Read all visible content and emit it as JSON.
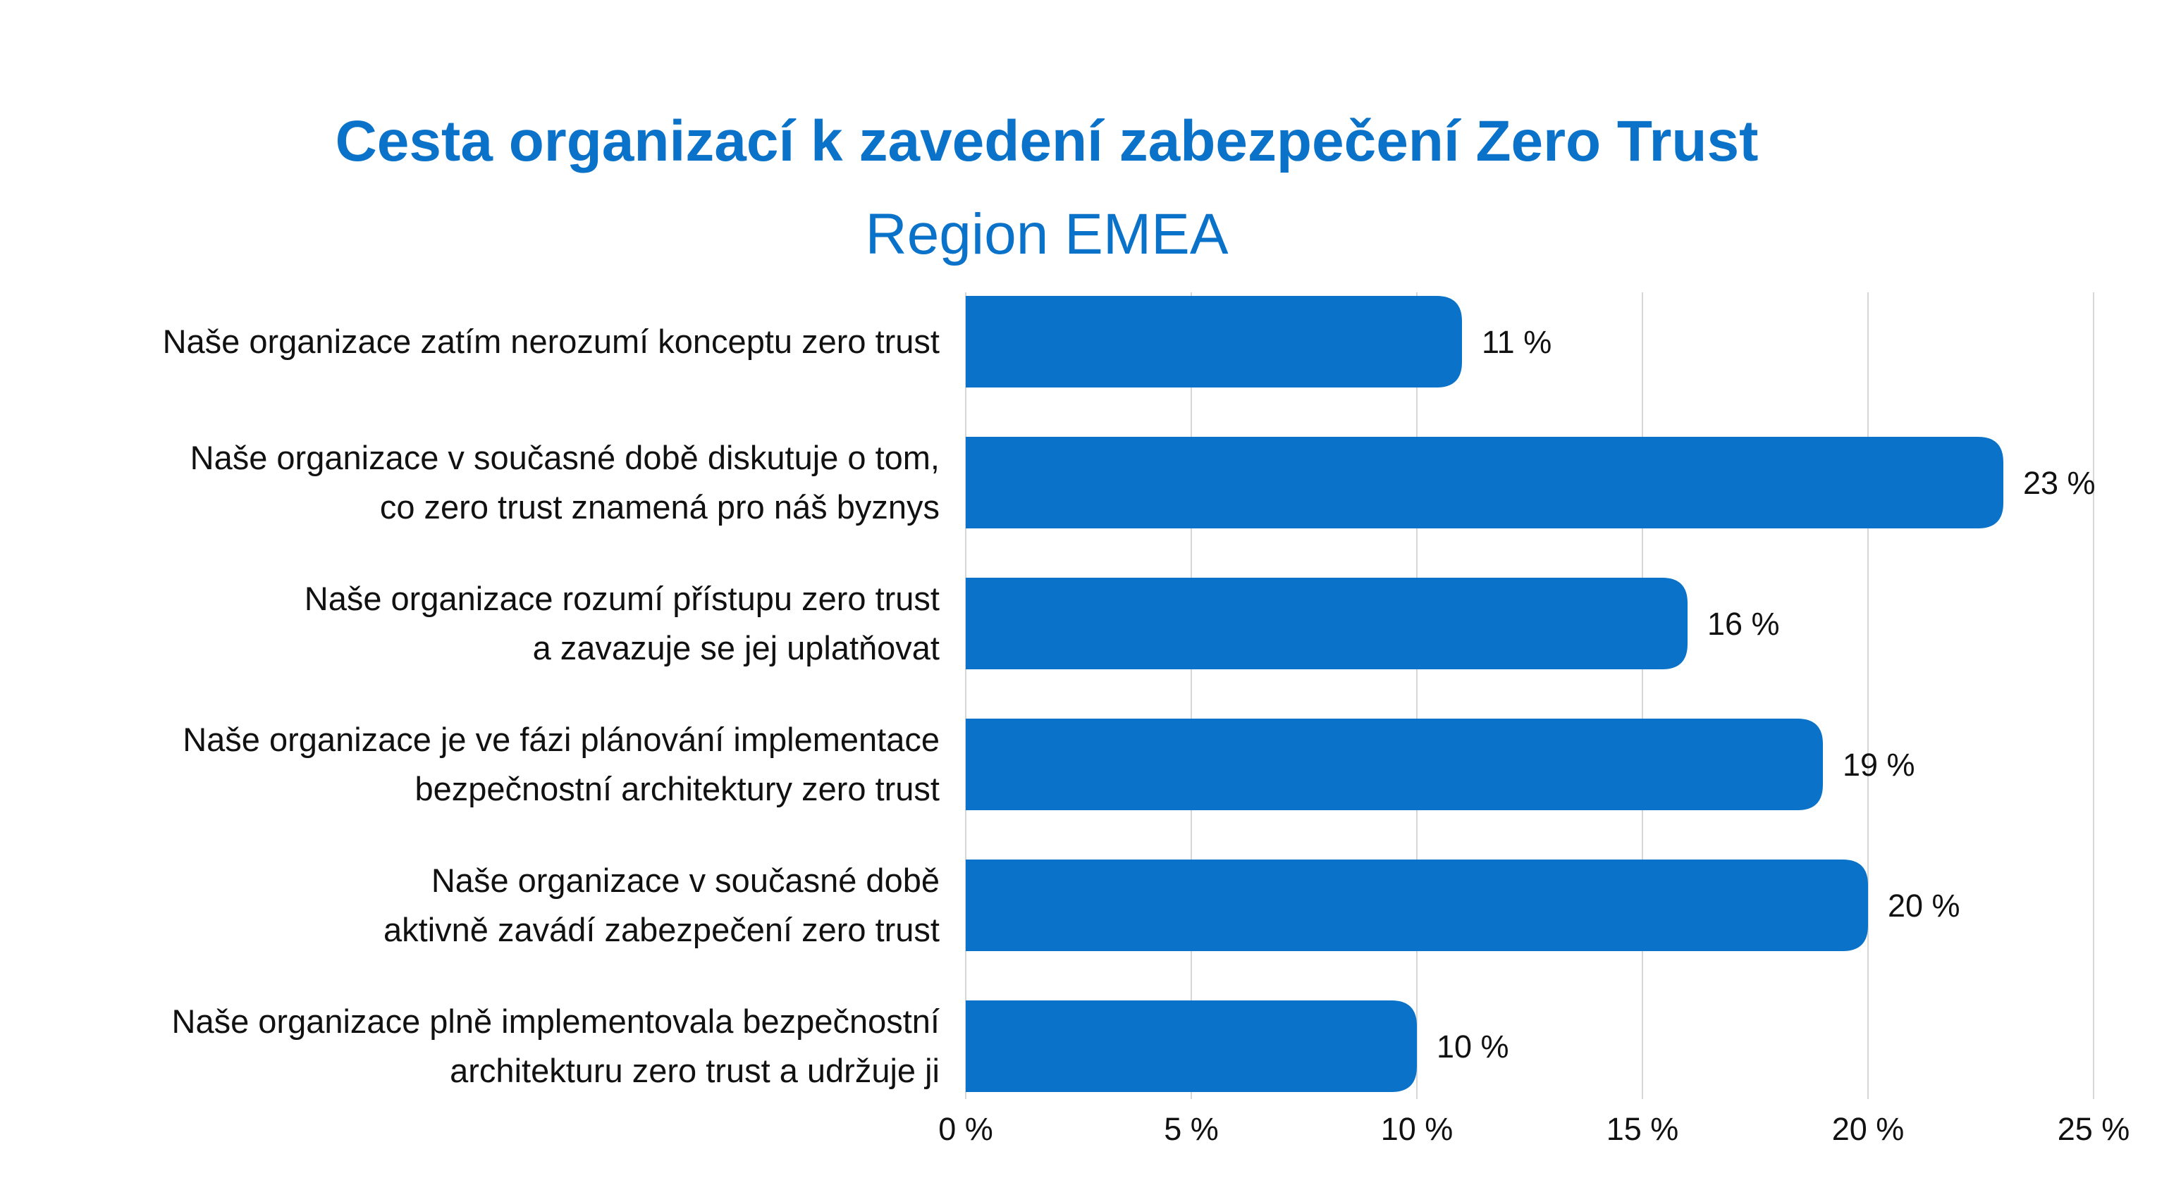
{
  "chart_data": {
    "type": "bar",
    "orientation": "horizontal",
    "title": "Cesta organizací k zavedení zabezpečení Zero Trust",
    "subtitle": "Region EMEA",
    "categories": [
      [
        "Naše organizace zatím nerozumí konceptu zero trust"
      ],
      [
        "Naše organizace v současné době diskutuje o tom,",
        "co zero trust znamená pro náš byznys"
      ],
      [
        "Naše organizace rozumí přístupu zero trust",
        "a zavazuje se jej uplatňovat"
      ],
      [
        "Naše organizace je ve fázi plánování implementace",
        "bezpečnostní architektury zero trust"
      ],
      [
        "Naše organizace v současné době",
        "aktivně zavádí zabezpečení zero trust"
      ],
      [
        "Naše organizace plně implementovala bezpečnostní",
        "architekturu zero trust a udržuje ji"
      ]
    ],
    "values": [
      11,
      23,
      16,
      19,
      20,
      10
    ],
    "value_labels": [
      "11 %",
      "23 %",
      "16 %",
      "19 %",
      "20 %",
      "10 %"
    ],
    "xlim": [
      0,
      25
    ],
    "xticks": [
      0,
      5,
      10,
      15,
      20,
      25
    ],
    "xtick_labels": [
      "0 %",
      "5 %",
      "10 %",
      "15 %",
      "20 %",
      "25 %"
    ],
    "grid": true,
    "legend": "none",
    "colors": {
      "bar": "#0a73c9",
      "grid": "#d6d6d6",
      "title": "#0a73c9"
    }
  }
}
